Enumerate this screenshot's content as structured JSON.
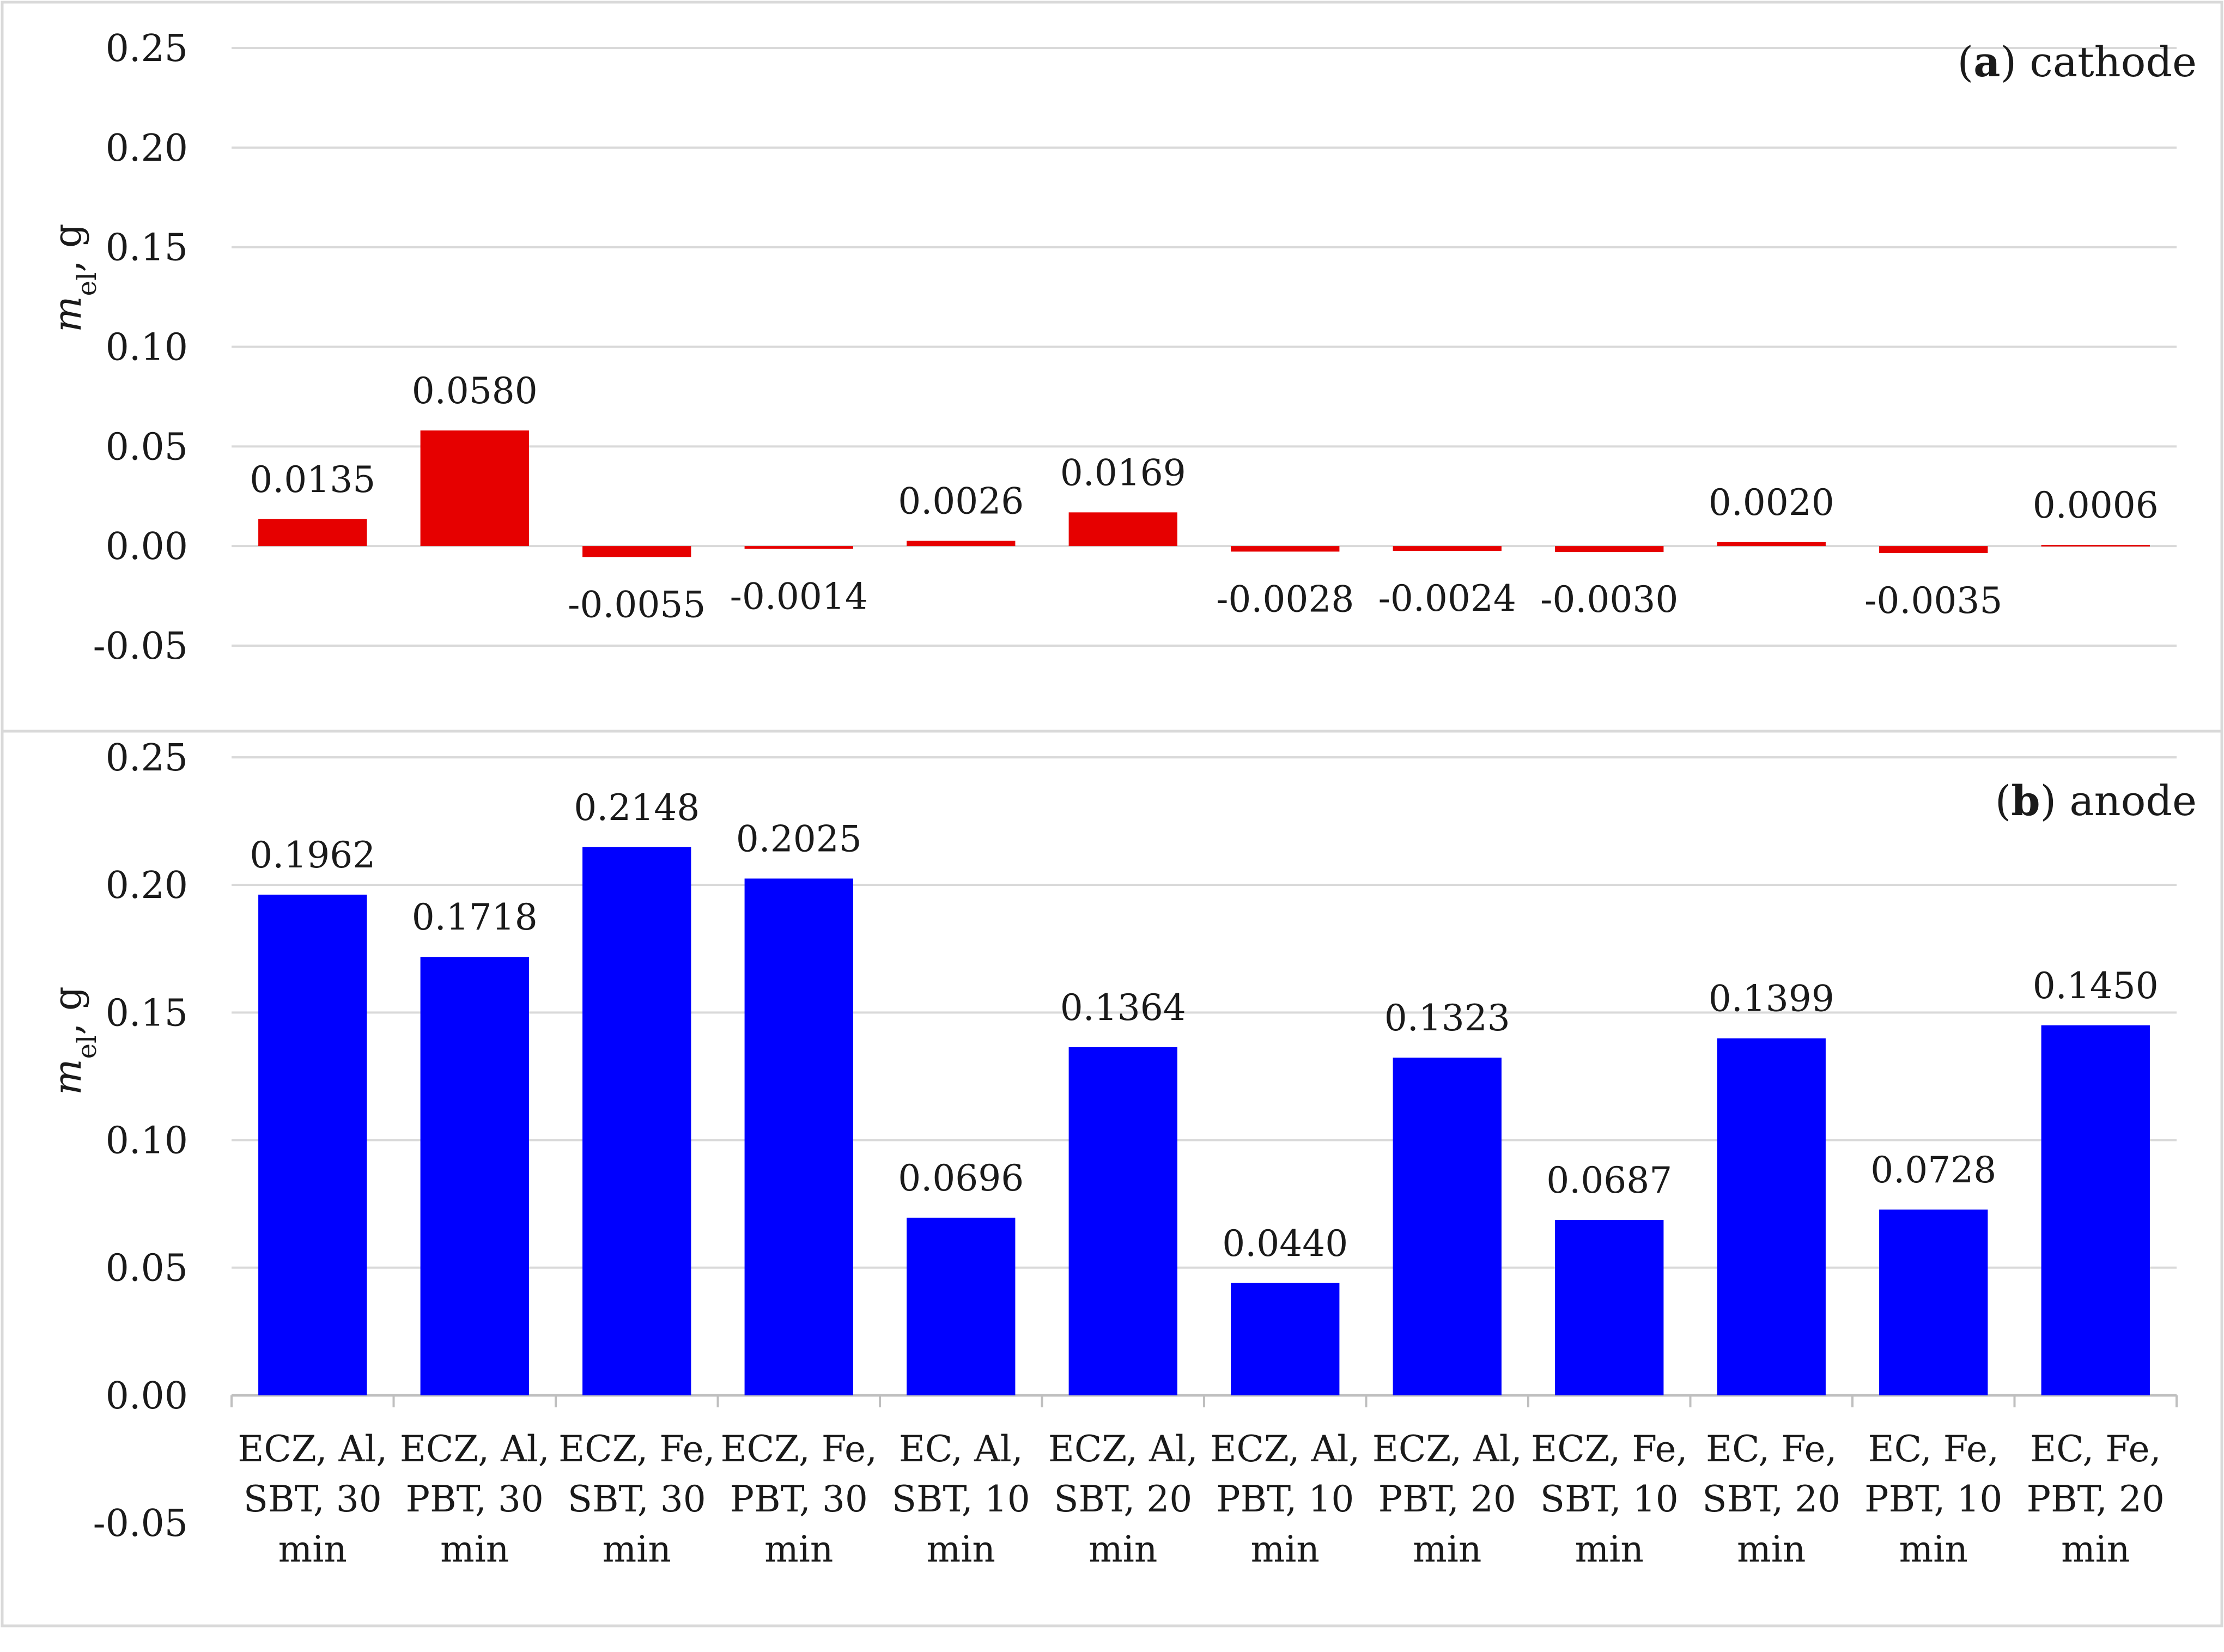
{
  "chart_data": [
    {
      "type": "bar",
      "panel_letter": "a",
      "panel_name": " cathode",
      "ylabel_var": "m",
      "ylabel_sub": "el",
      "ylabel_unit": ", g",
      "categories": [
        [
          "ECZ, Al,",
          "SBT, 30",
          "min"
        ],
        [
          "ECZ, Al,",
          "PBT, 30",
          "min"
        ],
        [
          "ECZ, Fe,",
          "SBT, 30",
          "min"
        ],
        [
          "ECZ, Fe,",
          "PBT, 30",
          "min"
        ],
        [
          "EC, Al,",
          "SBT, 10",
          "min"
        ],
        [
          "ECZ, Al,",
          "SBT, 20",
          "min"
        ],
        [
          "ECZ, Al,",
          "PBT, 10",
          "min"
        ],
        [
          "ECZ, Al,",
          "PBT, 20",
          "min"
        ],
        [
          "ECZ, Fe,",
          "SBT, 10",
          "min"
        ],
        [
          "EC, Fe,",
          "SBT, 20",
          "min"
        ],
        [
          "EC, Fe,",
          "PBT, 10",
          "min"
        ],
        [
          "EC, Fe,",
          "PBT, 20",
          "min"
        ]
      ],
      "values": [
        0.0135,
        0.058,
        -0.0055,
        -0.0014,
        0.0026,
        0.0169,
        -0.0028,
        -0.0024,
        -0.003,
        0.002,
        -0.0035,
        0.0006
      ],
      "value_labels": [
        "0.0135",
        "0.0580",
        "-0.0055",
        "-0.0014",
        "0.0026",
        "0.0169",
        "-0.0028",
        "-0.0024",
        "-0.0030",
        "0.0020",
        "-0.0035",
        "0.0006"
      ],
      "yticks": [
        0.25,
        0.2,
        0.15,
        0.1,
        0.05,
        0.0,
        -0.05
      ],
      "ytick_labels": [
        "0.25",
        "0.20",
        "0.15",
        "0.10",
        "0.05",
        "0.00",
        "-0.05"
      ],
      "ylim": [
        -0.05,
        0.25
      ],
      "color": "#e60000",
      "grid": true
    },
    {
      "type": "bar",
      "panel_letter": "b",
      "panel_name": " anode",
      "ylabel_var": "m",
      "ylabel_sub": "el",
      "ylabel_unit": ", g",
      "categories": [
        [
          "ECZ, Al,",
          "SBT, 30",
          "min"
        ],
        [
          "ECZ, Al,",
          "PBT, 30",
          "min"
        ],
        [
          "ECZ, Fe,",
          "SBT, 30",
          "min"
        ],
        [
          "ECZ, Fe,",
          "PBT, 30",
          "min"
        ],
        [
          "EC, Al,",
          "SBT, 10",
          "min"
        ],
        [
          "ECZ, Al,",
          "SBT, 20",
          "min"
        ],
        [
          "ECZ, Al,",
          "PBT, 10",
          "min"
        ],
        [
          "ECZ, Al,",
          "PBT, 20",
          "min"
        ],
        [
          "ECZ, Fe,",
          "SBT, 10",
          "min"
        ],
        [
          "EC, Fe,",
          "SBT, 20",
          "min"
        ],
        [
          "EC, Fe,",
          "PBT, 10",
          "min"
        ],
        [
          "EC, Fe,",
          "PBT, 20",
          "min"
        ]
      ],
      "values": [
        0.1962,
        0.1718,
        0.2148,
        0.2025,
        0.0696,
        0.1364,
        0.044,
        0.1323,
        0.0687,
        0.1399,
        0.0728,
        0.145
      ],
      "value_labels": [
        "0.1962",
        "0.1718",
        "0.2148",
        "0.2025",
        "0.0696",
        "0.1364",
        "0.0440",
        "0.1323",
        "0.0687",
        "0.1399",
        "0.0728",
        "0.1450"
      ],
      "yticks": [
        0.25,
        0.2,
        0.15,
        0.1,
        0.05,
        0.0,
        -0.05
      ],
      "ytick_labels": [
        "0.25",
        "0.20",
        "0.15",
        "0.10",
        "0.05",
        "0.00",
        "-0.05"
      ],
      "ylim": [
        -0.05,
        0.25
      ],
      "color": "#0000ff",
      "grid": true
    }
  ]
}
